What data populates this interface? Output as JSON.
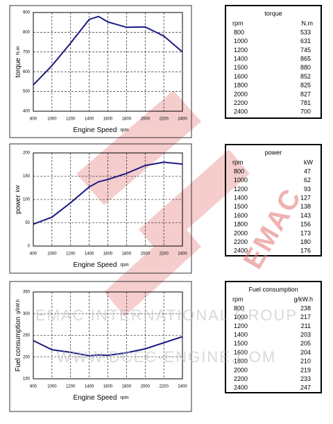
{
  "chart_data": [
    {
      "type": "line",
      "ylabel": "torque",
      "yunit": "N.m",
      "xlabel": "Engine Speed",
      "xunit": "rpm",
      "x": [
        800,
        1000,
        1200,
        1400,
        1500,
        1600,
        1800,
        2000,
        2200,
        2400
      ],
      "series": [
        {
          "color": "#1a1a80",
          "values": [
            533,
            631,
            745,
            865,
            880,
            852,
            825,
            827,
            781,
            700
          ]
        }
      ],
      "xlim": [
        800,
        2400
      ],
      "xticks": [
        800,
        1000,
        1200,
        1400,
        1600,
        1800,
        2000,
        2200,
        2400
      ],
      "ylim": [
        400,
        900
      ],
      "yticks": [
        400,
        500,
        600,
        700,
        800,
        900
      ],
      "grid": true
    },
    {
      "type": "line",
      "ylabel": "power",
      "yunit": "kW",
      "xlabel": "Engine Speed",
      "xunit": "rpm",
      "x": [
        800,
        1000,
        1200,
        1400,
        1500,
        1600,
        1800,
        2000,
        2200,
        2400
      ],
      "series": [
        {
          "color": "#1a1a80",
          "values": [
            47,
            62,
            93,
            127,
            138,
            143,
            156,
            173,
            180,
            176
          ]
        }
      ],
      "xlim": [
        800,
        2400
      ],
      "xticks": [
        800,
        1000,
        1200,
        1400,
        1600,
        1800,
        2000,
        2200,
        2400
      ],
      "ylim": [
        0,
        200
      ],
      "yticks": [
        0,
        50,
        100,
        150,
        200
      ],
      "grid": true
    },
    {
      "type": "line",
      "ylabel": "Fuel consumption",
      "yunit": "g/kW.h",
      "xlabel": "Engine Speed",
      "xunit": "rpm",
      "x": [
        800,
        1000,
        1200,
        1400,
        1500,
        1600,
        1800,
        2000,
        2200,
        2400
      ],
      "series": [
        {
          "color": "#1a1a80",
          "values": [
            238,
            217,
            211,
            203,
            205,
            204,
            210,
            219,
            233,
            247
          ]
        }
      ],
      "xlim": [
        800,
        2400
      ],
      "xticks": [
        800,
        1000,
        1200,
        1400,
        1600,
        1800,
        2000,
        2200,
        2400
      ],
      "ylim": [
        150,
        350
      ],
      "yticks": [
        150,
        200,
        250,
        300,
        350
      ],
      "grid": true
    }
  ],
  "tables": [
    {
      "title": "torque",
      "header": [
        "rpm",
        "N.m"
      ],
      "rows": [
        [
          "800",
          "533"
        ],
        [
          "1000",
          "631"
        ],
        [
          "1200",
          "745"
        ],
        [
          "1400",
          "865"
        ],
        [
          "1500",
          "880"
        ],
        [
          "1600",
          "852"
        ],
        [
          "1800",
          "825"
        ],
        [
          "2000",
          "827"
        ],
        [
          "2200",
          "781"
        ],
        [
          "2400",
          "700"
        ]
      ]
    },
    {
      "title": "power",
      "header": [
        "rpm",
        "kW"
      ],
      "rows": [
        [
          "800",
          "47"
        ],
        [
          "1000",
          "62"
        ],
        [
          "1200",
          "93"
        ],
        [
          "1400",
          "127"
        ],
        [
          "1500",
          "138"
        ],
        [
          "1600",
          "143"
        ],
        [
          "1800",
          "156"
        ],
        [
          "2000",
          "173"
        ],
        [
          "2200",
          "180"
        ],
        [
          "2400",
          "176"
        ]
      ]
    },
    {
      "title": "Fuel consumption",
      "header": [
        "rpm",
        "g/kW.h"
      ],
      "rows": [
        [
          "800",
          "238"
        ],
        [
          "1000",
          "217"
        ],
        [
          "1200",
          "211"
        ],
        [
          "1400",
          "203"
        ],
        [
          "1500",
          "205"
        ],
        [
          "1600",
          "204"
        ],
        [
          "1800",
          "210"
        ],
        [
          "2000",
          "219"
        ],
        [
          "2200",
          "233"
        ],
        [
          "2400",
          "247"
        ]
      ]
    }
  ],
  "watermark": {
    "line1": "EMAC INTERNATIONAL GROUP",
    "line2": "WWW.DCEC-ENGINE.COM",
    "logo": "EMAC"
  }
}
